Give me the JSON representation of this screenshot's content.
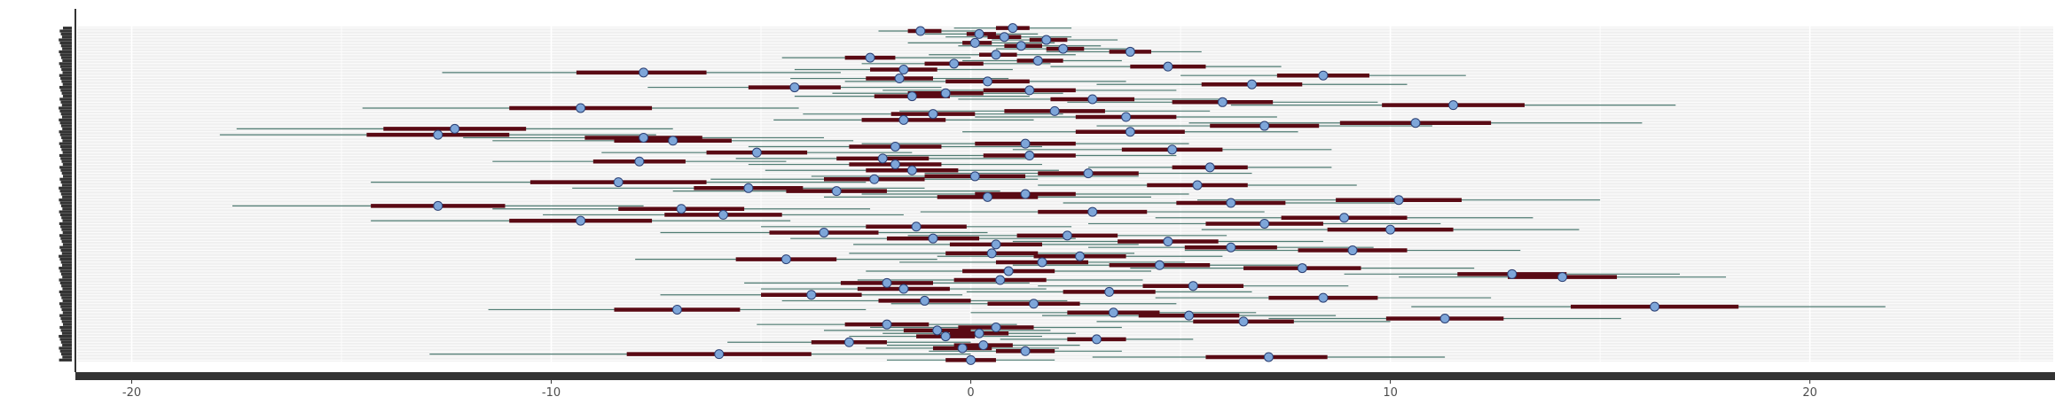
{
  "chart_data": {
    "type": "scatter",
    "subtype": "forest-plot",
    "title": "",
    "xlabel": "",
    "ylabel": "",
    "xlim": [
      -21.3,
      25.8
    ],
    "x_ticks": [
      -20,
      -10,
      0,
      10,
      20
    ],
    "x_tick_labels": [
      "-20",
      "-10",
      "0",
      "10",
      "20"
    ],
    "grid": true,
    "legend": "none",
    "colors": {
      "panel": "#f0f0f0",
      "grid": "#ffffff",
      "point_fill": "#7ea6d9",
      "point_stroke": "#2b3f73",
      "inner_interval": "#5a0a14",
      "outer_interval": "#4f7c73",
      "axis": "#333333",
      "ylabel_bars": "#333333"
    },
    "rows": [
      {
        "m": 1.0,
        "i": [
          0.6,
          1.4
        ],
        "o": [
          -0.4,
          2.4
        ]
      },
      {
        "m": -1.2,
        "i": [
          -1.5,
          -0.7
        ],
        "o": [
          -2.2,
          0.2
        ]
      },
      {
        "m": 0.2,
        "i": [
          -0.1,
          0.6
        ],
        "o": [
          -1.1,
          1.6
        ]
      },
      {
        "m": 0.8,
        "i": [
          0.4,
          1.2
        ],
        "o": [
          -0.6,
          2.4
        ]
      },
      {
        "m": 1.8,
        "i": [
          1.4,
          2.3
        ],
        "o": [
          0.5,
          3.5
        ]
      },
      {
        "m": 0.1,
        "i": [
          -0.2,
          0.5
        ],
        "o": [
          -1.5,
          2.0
        ]
      },
      {
        "m": 1.2,
        "i": [
          0.8,
          1.7
        ],
        "o": [
          -0.3,
          3.1
        ]
      },
      {
        "m": 2.2,
        "i": [
          1.8,
          2.7
        ],
        "o": [
          0.6,
          3.9
        ]
      },
      {
        "m": 3.8,
        "i": [
          3.3,
          4.3
        ],
        "o": [
          1.8,
          5.5
        ]
      },
      {
        "m": 0.6,
        "i": [
          0.2,
          1.1
        ],
        "o": [
          -1.0,
          2.5
        ]
      },
      {
        "m": -2.4,
        "i": [
          -3.0,
          -1.8
        ],
        "o": [
          -4.5,
          0.0
        ]
      },
      {
        "m": 1.6,
        "i": [
          1.1,
          2.2
        ],
        "o": [
          -0.2,
          3.6
        ]
      },
      {
        "m": -0.4,
        "i": [
          -1.1,
          0.3
        ],
        "o": [
          -2.6,
          1.9
        ]
      },
      {
        "m": 4.7,
        "i": [
          3.8,
          5.6
        ],
        "o": [
          1.9,
          7.4
        ]
      },
      {
        "m": -1.6,
        "i": [
          -2.4,
          -0.8
        ],
        "o": [
          -4.2,
          1.0
        ]
      },
      {
        "m": -7.8,
        "i": [
          -9.4,
          -6.3
        ],
        "o": [
          -12.6,
          -3.1
        ]
      },
      {
        "m": 8.4,
        "i": [
          7.3,
          9.5
        ],
        "o": [
          5.0,
          11.8
        ]
      },
      {
        "m": -1.7,
        "i": [
          -2.5,
          -0.9
        ],
        "o": [
          -4.3,
          0.9
        ]
      },
      {
        "m": 0.4,
        "i": [
          -0.6,
          1.4
        ],
        "o": [
          -3.0,
          3.7
        ]
      },
      {
        "m": 6.7,
        "i": [
          5.5,
          7.9
        ],
        "o": [
          3.0,
          10.4
        ]
      },
      {
        "m": -4.2,
        "i": [
          -5.3,
          -3.1
        ],
        "o": [
          -7.7,
          -0.7
        ]
      },
      {
        "m": 1.4,
        "i": [
          0.3,
          2.5
        ],
        "o": [
          -2.1,
          4.9
        ]
      },
      {
        "m": -0.6,
        "i": [
          -1.5,
          0.3
        ],
        "o": [
          -3.3,
          2.2
        ]
      },
      {
        "m": -1.4,
        "i": [
          -2.3,
          -0.5
        ],
        "o": [
          -4.2,
          1.4
        ]
      },
      {
        "m": 2.9,
        "i": [
          1.9,
          3.9
        ],
        "o": [
          -0.3,
          6.1
        ]
      },
      {
        "m": 6.0,
        "i": [
          4.8,
          7.2
        ],
        "o": [
          2.3,
          9.7
        ]
      },
      {
        "m": 11.5,
        "i": [
          9.8,
          13.2
        ],
        "o": [
          6.2,
          16.8
        ]
      },
      {
        "m": -9.3,
        "i": [
          -11.0,
          -7.6
        ],
        "o": [
          -14.5,
          -4.1
        ]
      },
      {
        "m": 2.0,
        "i": [
          0.8,
          3.2
        ],
        "o": [
          -1.7,
          5.7
        ]
      },
      {
        "m": -0.9,
        "i": [
          -1.9,
          0.1
        ],
        "o": [
          -4.0,
          2.2
        ]
      },
      {
        "m": 3.7,
        "i": [
          2.5,
          4.9
        ],
        "o": [
          0.1,
          7.3
        ]
      },
      {
        "m": -1.6,
        "i": [
          -2.6,
          -0.6
        ],
        "o": [
          -4.7,
          1.5
        ]
      },
      {
        "m": 10.6,
        "i": [
          8.8,
          12.4
        ],
        "o": [
          5.2,
          16.0
        ]
      },
      {
        "m": 7.0,
        "i": [
          5.7,
          8.3
        ],
        "o": [
          3.0,
          11.0
        ]
      },
      {
        "m": -12.3,
        "i": [
          -14.0,
          -10.6
        ],
        "o": [
          -17.5,
          -7.1
        ]
      },
      {
        "m": 3.8,
        "i": [
          2.5,
          5.1
        ],
        "o": [
          -0.2,
          7.8
        ]
      },
      {
        "m": -12.7,
        "i": [
          -14.4,
          -11.0
        ],
        "o": [
          -17.9,
          -7.5
        ]
      },
      {
        "m": -7.8,
        "i": [
          -9.2,
          -6.4
        ],
        "o": [
          -12.1,
          -3.5
        ]
      },
      {
        "m": -7.1,
        "i": [
          -8.5,
          -5.7
        ],
        "o": [
          -11.4,
          -2.8
        ]
      },
      {
        "m": 1.3,
        "i": [
          0.1,
          2.5
        ],
        "o": [
          -2.6,
          5.2
        ]
      },
      {
        "m": -1.8,
        "i": [
          -2.9,
          -0.7
        ],
        "o": [
          -5.3,
          1.7
        ]
      },
      {
        "m": 4.8,
        "i": [
          3.6,
          6.0
        ],
        "o": [
          1.0,
          8.6
        ]
      },
      {
        "m": -5.1,
        "i": [
          -6.3,
          -3.9
        ],
        "o": [
          -8.8,
          -1.4
        ]
      },
      {
        "m": 1.4,
        "i": [
          0.3,
          2.5
        ],
        "o": [
          -2.1,
          4.9
        ]
      },
      {
        "m": -2.1,
        "i": [
          -3.2,
          -1.0
        ],
        "o": [
          -5.6,
          1.4
        ]
      },
      {
        "m": -7.9,
        "i": [
          -9.0,
          -6.8
        ],
        "o": [
          -11.4,
          -4.4
        ]
      },
      {
        "m": -1.8,
        "i": [
          -2.9,
          -0.7
        ],
        "o": [
          -5.3,
          1.7
        ]
      },
      {
        "m": 5.7,
        "i": [
          4.8,
          6.6
        ],
        "o": [
          2.8,
          8.6
        ]
      },
      {
        "m": -1.4,
        "i": [
          -2.5,
          -0.3
        ],
        "o": [
          -4.9,
          2.1
        ]
      },
      {
        "m": 2.8,
        "i": [
          1.6,
          4.0
        ],
        "o": [
          -1.1,
          6.7
        ]
      },
      {
        "m": 0.1,
        "i": [
          -1.1,
          1.3
        ],
        "o": [
          -3.8,
          4.0
        ]
      },
      {
        "m": -2.3,
        "i": [
          -3.5,
          -1.1
        ],
        "o": [
          -6.2,
          1.6
        ]
      },
      {
        "m": -8.4,
        "i": [
          -10.5,
          -6.3
        ],
        "o": [
          -14.3,
          -2.5
        ]
      },
      {
        "m": 5.4,
        "i": [
          4.2,
          6.6
        ],
        "o": [
          1.6,
          9.2
        ]
      },
      {
        "m": -5.3,
        "i": [
          -6.6,
          -4.0
        ],
        "o": [
          -9.5,
          -1.1
        ]
      },
      {
        "m": -3.2,
        "i": [
          -4.4,
          -2.0
        ],
        "o": [
          -7.1,
          0.7
        ]
      },
      {
        "m": 1.3,
        "i": [
          0.1,
          2.5
        ],
        "o": [
          -2.6,
          5.2
        ]
      },
      {
        "m": 0.4,
        "i": [
          -0.8,
          1.6
        ],
        "o": [
          -3.5,
          4.3
        ]
      },
      {
        "m": 10.2,
        "i": [
          8.7,
          11.7
        ],
        "o": [
          5.4,
          15.0
        ]
      },
      {
        "m": 6.2,
        "i": [
          4.9,
          7.5
        ],
        "o": [
          2.2,
          10.2
        ]
      },
      {
        "m": -12.7,
        "i": [
          -14.3,
          -11.1
        ],
        "o": [
          -17.6,
          -7.8
        ]
      },
      {
        "m": -6.9,
        "i": [
          -8.4,
          -5.4
        ],
        "o": [
          -11.4,
          -2.4
        ]
      },
      {
        "m": 2.9,
        "i": [
          1.6,
          4.2
        ],
        "o": [
          -1.2,
          7.0
        ]
      },
      {
        "m": -5.9,
        "i": [
          -7.3,
          -4.5
        ],
        "o": [
          -10.2,
          -1.6
        ]
      },
      {
        "m": 8.9,
        "i": [
          7.4,
          10.4
        ],
        "o": [
          4.4,
          13.4
        ]
      },
      {
        "m": -9.3,
        "i": [
          -11.0,
          -7.6
        ],
        "o": [
          -14.3,
          -4.3
        ]
      },
      {
        "m": 7.0,
        "i": [
          5.6,
          8.4
        ],
        "o": [
          2.8,
          11.2
        ]
      },
      {
        "m": -1.3,
        "i": [
          -2.5,
          -0.1
        ],
        "o": [
          -5.0,
          2.4
        ]
      },
      {
        "m": 10.0,
        "i": [
          8.5,
          11.5
        ],
        "o": [
          5.5,
          14.5
        ]
      },
      {
        "m": -3.5,
        "i": [
          -4.8,
          -2.2
        ],
        "o": [
          -7.4,
          0.4
        ]
      },
      {
        "m": 2.3,
        "i": [
          1.1,
          3.5
        ],
        "o": [
          -1.5,
          6.1
        ]
      },
      {
        "m": -0.9,
        "i": [
          -2.0,
          0.2
        ],
        "o": [
          -4.3,
          2.5
        ]
      },
      {
        "m": 4.7,
        "i": [
          3.5,
          5.9
        ],
        "o": [
          1.0,
          8.4
        ]
      },
      {
        "m": 0.6,
        "i": [
          -0.5,
          1.7
        ],
        "o": [
          -2.8,
          4.0
        ]
      },
      {
        "m": 6.2,
        "i": [
          5.1,
          7.3
        ],
        "o": [
          2.8,
          9.6
        ]
      },
      {
        "m": 9.1,
        "i": [
          7.8,
          10.4
        ],
        "o": [
          5.1,
          13.1
        ]
      },
      {
        "m": 0.5,
        "i": [
          -0.6,
          1.6
        ],
        "o": [
          -2.9,
          3.9
        ]
      },
      {
        "m": 2.6,
        "i": [
          1.5,
          3.7
        ],
        "o": [
          -0.8,
          6.0
        ]
      },
      {
        "m": -4.4,
        "i": [
          -5.6,
          -3.2
        ],
        "o": [
          -8.0,
          -0.8
        ]
      },
      {
        "m": 1.7,
        "i": [
          0.6,
          2.8
        ],
        "o": [
          -1.7,
          5.1
        ]
      },
      {
        "m": 4.5,
        "i": [
          3.3,
          5.7
        ],
        "o": [
          1.0,
          8.0
        ]
      },
      {
        "m": 7.9,
        "i": [
          6.5,
          9.3
        ],
        "o": [
          3.8,
          12.0
        ]
      },
      {
        "m": 0.9,
        "i": [
          -0.2,
          2.0
        ],
        "o": [
          -2.5,
          4.3
        ]
      },
      {
        "m": 12.9,
        "i": [
          11.6,
          14.2
        ],
        "o": [
          8.9,
          16.9
        ]
      },
      {
        "m": 14.1,
        "i": [
          12.8,
          15.4
        ],
        "o": [
          10.2,
          18.0
        ]
      },
      {
        "m": 0.7,
        "i": [
          -0.4,
          1.8
        ],
        "o": [
          -2.7,
          4.1
        ]
      },
      {
        "m": -2.0,
        "i": [
          -3.1,
          -0.9
        ],
        "o": [
          -5.4,
          1.4
        ]
      },
      {
        "m": 5.3,
        "i": [
          4.1,
          6.5
        ],
        "o": [
          1.6,
          9.0
        ]
      },
      {
        "m": -1.6,
        "i": [
          -2.7,
          -0.5
        ],
        "o": [
          -5.0,
          1.8
        ]
      },
      {
        "m": 3.3,
        "i": [
          2.2,
          4.4
        ],
        "o": [
          -0.1,
          6.7
        ]
      },
      {
        "m": -3.8,
        "i": [
          -5.0,
          -2.6
        ],
        "o": [
          -7.4,
          -0.2
        ]
      },
      {
        "m": 8.4,
        "i": [
          7.1,
          9.7
        ],
        "o": [
          4.4,
          12.4
        ]
      },
      {
        "m": -1.1,
        "i": [
          -2.2,
          0.0
        ],
        "o": [
          -4.5,
          2.3
        ]
      },
      {
        "m": 1.5,
        "i": [
          0.4,
          2.6
        ],
        "o": [
          -1.9,
          4.9
        ]
      },
      {
        "m": 16.3,
        "i": [
          14.3,
          18.3
        ],
        "o": [
          10.5,
          21.8
        ]
      },
      {
        "m": -7.0,
        "i": [
          -8.5,
          -5.5
        ],
        "o": [
          -11.5,
          -2.5
        ]
      },
      {
        "m": 3.4,
        "i": [
          2.3,
          4.5
        ],
        "o": [
          0.0,
          6.8
        ]
      },
      {
        "m": 5.2,
        "i": [
          4.0,
          6.4
        ],
        "o": [
          1.7,
          8.7
        ]
      },
      {
        "m": 11.3,
        "i": [
          9.9,
          12.7
        ],
        "o": [
          7.1,
          15.5
        ]
      },
      {
        "m": 6.5,
        "i": [
          5.3,
          7.7
        ],
        "o": [
          3.0,
          10.0
        ]
      },
      {
        "m": -2.0,
        "i": [
          -3.0,
          -1.0
        ],
        "o": [
          -5.1,
          1.1
        ]
      },
      {
        "m": 0.6,
        "i": [
          -0.3,
          1.5
        ],
        "o": [
          -2.4,
          3.6
        ]
      },
      {
        "m": -0.8,
        "i": [
          -1.6,
          0.0
        ],
        "o": [
          -3.5,
          1.9
        ]
      },
      {
        "m": 0.2,
        "i": [
          -0.5,
          0.9
        ],
        "o": [
          -2.1,
          2.5
        ]
      },
      {
        "m": -0.6,
        "i": [
          -1.3,
          0.1
        ],
        "o": [
          -2.9,
          1.7
        ]
      },
      {
        "m": 3.0,
        "i": [
          2.3,
          3.7
        ],
        "o": [
          0.7,
          5.3
        ]
      },
      {
        "m": -2.9,
        "i": [
          -3.8,
          -2.0
        ],
        "o": [
          -5.8,
          0.0
        ]
      },
      {
        "m": 0.3,
        "i": [
          -0.4,
          1.0
        ],
        "o": [
          -2.0,
          2.6
        ]
      },
      {
        "m": -0.2,
        "i": [
          -0.9,
          0.5
        ],
        "o": [
          -2.5,
          2.1
        ]
      },
      {
        "m": 1.3,
        "i": [
          0.6,
          2.0
        ],
        "o": [
          -1.0,
          3.6
        ]
      },
      {
        "m": -6.0,
        "i": [
          -8.2,
          -3.8
        ],
        "o": [
          -12.9,
          0.0
        ]
      },
      {
        "m": 7.1,
        "i": [
          5.6,
          8.5
        ],
        "o": [
          2.9,
          11.3
        ]
      },
      {
        "m": 0.0,
        "i": [
          -0.6,
          0.6
        ],
        "o": [
          -2.0,
          2.0
        ]
      }
    ]
  }
}
